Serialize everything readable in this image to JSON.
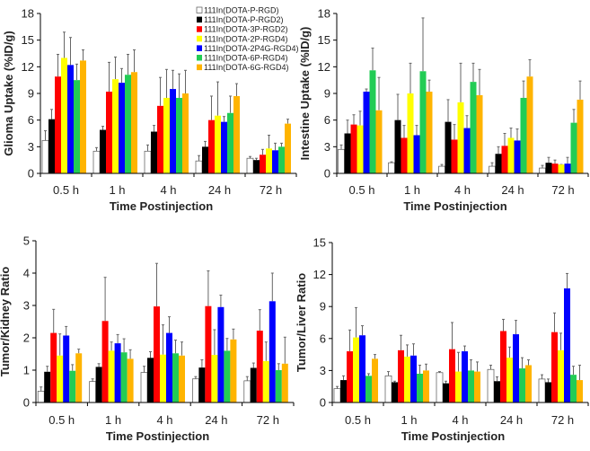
{
  "chart_data": [
    {
      "type": "bar",
      "ylabel": "Glioma Uptake (%ID/g)",
      "xlabel": "Time Postinjection",
      "categories": [
        "0.5 h",
        "1 h",
        "4 h",
        "24 h",
        "72 h"
      ],
      "ylim": [
        0,
        18
      ],
      "yticks": [
        "0",
        "3",
        "6",
        "9",
        "12",
        "15",
        "18"
      ],
      "legend": "top-right",
      "series": [
        {
          "name": "111In(DOTA-P-RGD)",
          "color": "#ffffff",
          "values": [
            3.7,
            2.5,
            2.5,
            1.4,
            1.7
          ],
          "err_top": [
            4.8,
            2.9,
            3.2,
            2.0,
            1.9
          ]
        },
        {
          "name": "111In(DOTA-P-RGD2)",
          "color": "#000000",
          "values": [
            6.1,
            4.9,
            4.7,
            3.0,
            1.5
          ],
          "err_top": [
            7.2,
            5.3,
            5.4,
            3.6,
            1.7
          ]
        },
        {
          "name": "111In(DOTA-3P-RGD2)",
          "color": "#ff0000",
          "values": [
            10.9,
            9.2,
            7.6,
            6.0,
            2.1
          ],
          "err_top": [
            13.4,
            12.5,
            10.8,
            8.7,
            2.7
          ]
        },
        {
          "name": "111In(DOTA-2P-RGD4)",
          "color": "#ffff00",
          "values": [
            13.0,
            10.6,
            8.5,
            6.5,
            2.8
          ],
          "err_top": [
            15.9,
            13.1,
            11.7,
            10.3,
            4.3
          ]
        },
        {
          "name": "111In(DOTA-2P4G-RGD4)",
          "color": "#0000ff",
          "values": [
            12.2,
            10.2,
            9.5,
            5.8,
            2.6
          ],
          "err_top": [
            15.3,
            11.8,
            11.6,
            6.4,
            3.4
          ]
        },
        {
          "name": "111In(DOTA-6P-RGD4)",
          "color": "#22cc55",
          "values": [
            10.5,
            11.1,
            8.5,
            6.8,
            3.0
          ],
          "err_top": [
            12.3,
            13.4,
            11.2,
            8.7,
            3.4
          ]
        },
        {
          "name": "111In(DOTA-6G-RGD4)",
          "color": "#ffb400",
          "values": [
            12.7,
            11.4,
            9.0,
            8.7,
            5.6
          ],
          "err_top": [
            13.9,
            13.9,
            11.6,
            10.1,
            6.1
          ]
        }
      ]
    },
    {
      "type": "bar",
      "ylabel": "Intestine Uptake (%ID/g)",
      "xlabel": "Time Postinjection",
      "categories": [
        "0.5 h",
        "1 h",
        "4 h",
        "24 h",
        "72 h"
      ],
      "ylim": [
        0,
        18
      ],
      "yticks": [
        "0",
        "3",
        "6",
        "9",
        "12",
        "15",
        "18"
      ],
      "series": [
        {
          "color": "#ffffff",
          "values": [
            2.7,
            1.2,
            0.8,
            0.8,
            0.6
          ],
          "err_top": [
            3.2,
            1.3,
            1.0,
            1.2,
            0.9
          ]
        },
        {
          "color": "#000000",
          "values": [
            4.5,
            6.0,
            5.8,
            2.2,
            1.2
          ],
          "err_top": [
            6.0,
            8.9,
            8.3,
            3.0,
            1.8
          ]
        },
        {
          "color": "#ff0000",
          "values": [
            5.5,
            4.0,
            3.8,
            3.1,
            1.1
          ],
          "err_top": [
            6.6,
            5.4,
            5.5,
            4.5,
            1.5
          ]
        },
        {
          "color": "#ffff00",
          "values": [
            5.4,
            9.0,
            8.0,
            4.0,
            1.0
          ],
          "err_top": [
            7.0,
            12.4,
            12.4,
            5.1,
            1.0
          ]
        },
        {
          "color": "#0000ff",
          "values": [
            9.2,
            4.3,
            5.1,
            3.7,
            1.1
          ],
          "err_top": [
            9.5,
            5.4,
            6.5,
            5.0,
            1.8
          ]
        },
        {
          "color": "#22cc55",
          "values": [
            11.6,
            11.5,
            10.3,
            8.5,
            5.7
          ],
          "err_top": [
            14.1,
            17.5,
            12.4,
            10.4,
            7.2
          ]
        },
        {
          "color": "#ffb400",
          "values": [
            7.1,
            9.2,
            8.8,
            10.9,
            8.3
          ],
          "err_top": [
            10.8,
            10.5,
            11.7,
            12.8,
            10.4
          ]
        }
      ]
    },
    {
      "type": "bar",
      "ylabel": "Tumor/Kidney Ratio",
      "xlabel": "Time Postinjection",
      "categories": [
        "0.5 h",
        "1 h",
        "4 h",
        "24 h",
        "72 h"
      ],
      "ylim": [
        0,
        5
      ],
      "yticks": [
        "0",
        "1",
        "2",
        "3",
        "4",
        "5"
      ],
      "series": [
        {
          "color": "#ffffff",
          "values": [
            0.35,
            0.65,
            0.93,
            0.73,
            0.67
          ],
          "err_top": [
            0.48,
            0.73,
            1.12,
            0.8,
            0.8
          ]
        },
        {
          "color": "#000000",
          "values": [
            0.95,
            1.1,
            1.38,
            1.08,
            1.07
          ],
          "err_top": [
            1.12,
            1.2,
            1.57,
            1.32,
            1.22
          ]
        },
        {
          "color": "#ff0000",
          "values": [
            2.15,
            2.52,
            2.97,
            2.98,
            2.22
          ],
          "err_top": [
            2.88,
            3.87,
            4.3,
            4.07,
            2.87
          ]
        },
        {
          "color": "#ffff00",
          "values": [
            1.45,
            1.6,
            1.48,
            1.47,
            1.28
          ],
          "err_top": [
            2.12,
            1.87,
            2.4,
            2.25,
            1.87
          ]
        },
        {
          "color": "#0000ff",
          "values": [
            2.07,
            1.83,
            2.15,
            2.95,
            3.13
          ],
          "err_top": [
            2.35,
            2.1,
            2.65,
            3.32,
            4.0
          ]
        },
        {
          "color": "#22cc55",
          "values": [
            0.98,
            1.55,
            1.52,
            1.6,
            1.0
          ],
          "err_top": [
            1.17,
            1.97,
            1.93,
            1.98,
            1.2
          ]
        },
        {
          "color": "#ffb400",
          "values": [
            1.52,
            1.35,
            1.45,
            1.95,
            1.2
          ],
          "err_top": [
            1.65,
            1.63,
            1.87,
            2.27,
            2.02
          ]
        }
      ]
    },
    {
      "type": "bar",
      "ylabel": "Tumor/Liver Ratio",
      "xlabel": "Time Postinjection",
      "categories": [
        "0.5 h",
        "1 h",
        "4 h",
        "24 h",
        "72 h"
      ],
      "ylim": [
        0,
        15
      ],
      "yticks": [
        "0",
        "3",
        "6",
        "9",
        "12",
        "15"
      ],
      "series": [
        {
          "color": "#ffffff",
          "values": [
            1.3,
            2.5,
            2.8,
            3.1,
            2.2
          ],
          "err_top": [
            1.5,
            2.9,
            2.9,
            3.5,
            2.6
          ]
        },
        {
          "color": "#000000",
          "values": [
            2.1,
            1.9,
            1.8,
            2.0,
            1.9
          ],
          "err_top": [
            2.5,
            2.0,
            2.0,
            2.4,
            2.2
          ]
        },
        {
          "color": "#ff0000",
          "values": [
            4.8,
            4.9,
            5.0,
            6.7,
            6.6
          ],
          "err_top": [
            6.8,
            6.3,
            7.5,
            7.8,
            8.4
          ]
        },
        {
          "color": "#ffff00",
          "values": [
            6.1,
            4.3,
            2.9,
            4.2,
            4.9
          ],
          "err_top": [
            8.9,
            5.4,
            4.7,
            5.2,
            6.5
          ]
        },
        {
          "color": "#0000ff",
          "values": [
            6.3,
            4.4,
            4.8,
            6.4,
            10.7
          ],
          "err_top": [
            7.2,
            5.5,
            5.3,
            7.7,
            12.1
          ]
        },
        {
          "color": "#22cc55",
          "values": [
            2.5,
            2.7,
            3.0,
            3.2,
            2.6
          ],
          "err_top": [
            2.7,
            3.5,
            4.0,
            4.2,
            3.4
          ]
        },
        {
          "color": "#ffb400",
          "values": [
            4.1,
            3.0,
            2.9,
            3.5,
            2.1
          ],
          "err_top": [
            4.5,
            3.6,
            3.8,
            4.0,
            3.5
          ]
        }
      ]
    }
  ]
}
